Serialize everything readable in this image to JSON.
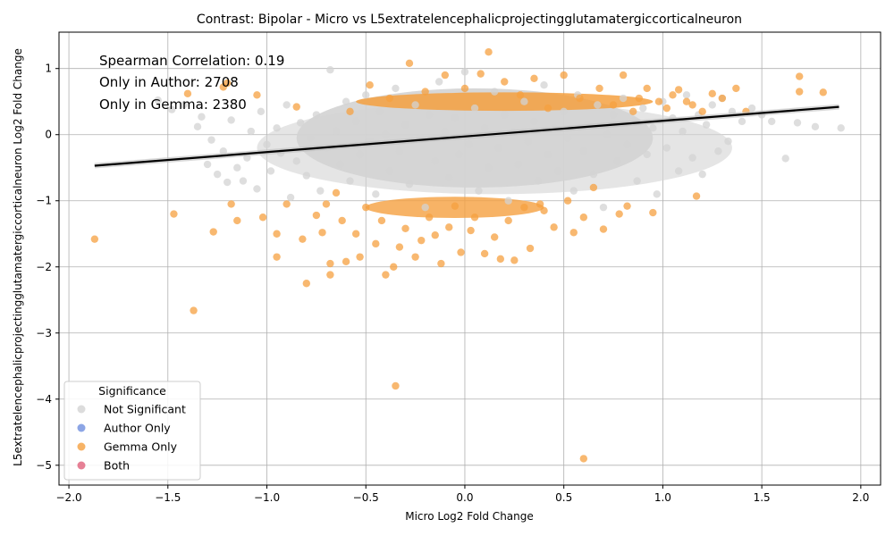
{
  "chart_data": {
    "type": "scatter",
    "title": "Contrast: Bipolar - Micro vs L5extratelencephalicprojectingglutamatergiccorticalneuron",
    "xlabel": "Micro Log2 Fold Change",
    "ylabel": "L5extratelencephalicprojectingglutamatergiccorticalneuron Log2 Fold Change",
    "xlim": [
      -2.05,
      2.1
    ],
    "ylim": [
      -5.3,
      1.55
    ],
    "xticks": [
      -2.0,
      -1.5,
      -1.0,
      -0.5,
      0.0,
      0.5,
      1.0,
      1.5,
      2.0
    ],
    "xtick_labels": [
      "−2.0",
      "−1.5",
      "−1.0",
      "−0.5",
      "0.0",
      "0.5",
      "1.0",
      "1.5",
      "2.0"
    ],
    "yticks": [
      -5,
      -4,
      -3,
      -2,
      -1,
      0,
      1
    ],
    "ytick_labels": [
      "−5",
      "−4",
      "−3",
      "−2",
      "−1",
      "0",
      "1"
    ],
    "grid": true,
    "annotations": [
      "Spearman Correlation: 0.19",
      "Only in Author: 2708",
      "Only in Gemma: 2380"
    ],
    "regression_line": {
      "x": [
        -1.87,
        1.89
      ],
      "y": [
        -0.47,
        0.42
      ],
      "color": "#000000"
    },
    "legend": {
      "title": "Significance",
      "placement": "lower-left",
      "entries": [
        {
          "label": "Not Significant",
          "color": "#d3d3d3"
        },
        {
          "label": "Author Only",
          "color": "#6f8fdf"
        },
        {
          "label": "Gemma Only",
          "color": "#f5a040"
        },
        {
          "label": "Both",
          "color": "#e0607a"
        }
      ]
    },
    "series": [
      {
        "name": "Not Significant",
        "color": "#d3d3d3",
        "points": [
          [
            -1.55,
            0.52
          ],
          [
            -1.48,
            0.38
          ],
          [
            -1.42,
            0.45
          ],
          [
            -1.35,
            0.12
          ],
          [
            -1.33,
            0.27
          ],
          [
            -1.3,
            -0.45
          ],
          [
            -1.28,
            -0.08
          ],
          [
            -1.25,
            -0.6
          ],
          [
            -1.22,
            -0.25
          ],
          [
            -1.2,
            -0.72
          ],
          [
            -1.18,
            0.22
          ],
          [
            -1.15,
            -0.5
          ],
          [
            -1.12,
            -0.7
          ],
          [
            -1.1,
            -0.35
          ],
          [
            -1.08,
            0.05
          ],
          [
            -1.05,
            -0.82
          ],
          [
            -1.03,
            0.35
          ],
          [
            -1.0,
            -0.15
          ],
          [
            -0.98,
            -0.55
          ],
          [
            -0.95,
            0.1
          ],
          [
            -0.93,
            -0.28
          ],
          [
            -0.9,
            0.45
          ],
          [
            -0.88,
            -0.95
          ],
          [
            -0.85,
            -0.4
          ],
          [
            -0.83,
            0.18
          ],
          [
            -0.8,
            -0.62
          ],
          [
            -0.78,
            -0.05
          ],
          [
            -0.75,
            0.3
          ],
          [
            -0.73,
            -0.85
          ],
          [
            -0.7,
            -0.2
          ],
          [
            -0.68,
            0.98
          ],
          [
            -0.65,
            0.05
          ],
          [
            -0.63,
            -0.45
          ],
          [
            -0.6,
            0.5
          ],
          [
            -0.58,
            -0.7
          ],
          [
            -0.55,
            0.2
          ],
          [
            -0.53,
            -0.3
          ],
          [
            -0.5,
            0.6
          ],
          [
            -0.48,
            -0.1
          ],
          [
            -0.45,
            -0.9
          ],
          [
            -0.43,
            0.35
          ],
          [
            -0.4,
            0.0
          ],
          [
            -0.38,
            -0.55
          ],
          [
            -0.35,
            0.7
          ],
          [
            -0.33,
            -0.25
          ],
          [
            -0.3,
            0.15
          ],
          [
            -0.28,
            -0.75
          ],
          [
            -0.25,
            0.45
          ],
          [
            -0.23,
            -0.05
          ],
          [
            -0.2,
            -1.1
          ],
          [
            -0.18,
            0.3
          ],
          [
            -0.15,
            -0.4
          ],
          [
            -0.13,
            0.8
          ],
          [
            -0.1,
            0.05
          ],
          [
            -0.08,
            -0.65
          ],
          [
            -0.05,
            0.25
          ],
          [
            -0.03,
            -0.3
          ],
          [
            0.0,
            0.95
          ],
          [
            0.02,
            -0.15
          ],
          [
            0.05,
            0.4
          ],
          [
            0.07,
            -0.85
          ],
          [
            0.1,
            0.1
          ],
          [
            0.12,
            -0.5
          ],
          [
            0.15,
            0.65
          ],
          [
            0.17,
            -0.2
          ],
          [
            0.2,
            0.3
          ],
          [
            0.22,
            -1.0
          ],
          [
            0.25,
            0.05
          ],
          [
            0.27,
            -0.45
          ],
          [
            0.3,
            0.5
          ],
          [
            0.32,
            -0.1
          ],
          [
            0.35,
            0.2
          ],
          [
            0.37,
            -0.7
          ],
          [
            0.4,
            0.75
          ],
          [
            0.42,
            -0.3
          ],
          [
            0.45,
            0.1
          ],
          [
            0.47,
            -0.55
          ],
          [
            0.5,
            0.35
          ],
          [
            0.52,
            -0.05
          ],
          [
            0.55,
            -0.85
          ],
          [
            0.57,
            0.6
          ],
          [
            0.6,
            -0.25
          ],
          [
            0.62,
            0.15
          ],
          [
            0.65,
            -0.6
          ],
          [
            0.67,
            0.45
          ],
          [
            0.7,
            -1.1
          ],
          [
            0.72,
            0.0
          ],
          [
            0.75,
            0.3
          ],
          [
            0.77,
            -0.4
          ],
          [
            0.8,
            0.55
          ],
          [
            0.82,
            -0.15
          ],
          [
            0.85,
            0.2
          ],
          [
            0.87,
            -0.7
          ],
          [
            0.9,
            0.4
          ],
          [
            0.92,
            -0.3
          ],
          [
            0.95,
            0.1
          ],
          [
            0.97,
            -0.9
          ],
          [
            1.0,
            0.5
          ],
          [
            1.02,
            -0.2
          ],
          [
            1.05,
            0.25
          ],
          [
            1.08,
            -0.55
          ],
          [
            1.1,
            0.05
          ],
          [
            1.12,
            0.6
          ],
          [
            1.15,
            -0.35
          ],
          [
            1.18,
            0.3
          ],
          [
            1.2,
            -0.6
          ],
          [
            1.22,
            0.15
          ],
          [
            1.25,
            0.45
          ],
          [
            1.28,
            -0.25
          ],
          [
            1.3,
            0.55
          ],
          [
            1.33,
            -0.1
          ],
          [
            1.35,
            0.35
          ],
          [
            1.4,
            0.2
          ],
          [
            1.45,
            0.4
          ],
          [
            1.5,
            0.3
          ],
          [
            1.55,
            0.2
          ],
          [
            1.62,
            -0.36
          ],
          [
            1.68,
            0.18
          ],
          [
            1.77,
            0.12
          ],
          [
            1.9,
            0.1
          ]
        ]
      },
      {
        "name": "Gemma Only",
        "color": "#f5a040",
        "points": [
          [
            -1.87,
            -1.58
          ],
          [
            -1.47,
            -1.2
          ],
          [
            -1.4,
            0.62
          ],
          [
            -1.37,
            -2.66
          ],
          [
            -1.27,
            -1.47
          ],
          [
            -1.22,
            0.72
          ],
          [
            -1.2,
            0.78
          ],
          [
            -1.18,
            -1.05
          ],
          [
            -1.15,
            -1.3
          ],
          [
            -1.05,
            0.6
          ],
          [
            -1.02,
            -1.25
          ],
          [
            -0.95,
            -1.5
          ],
          [
            -0.95,
            -1.85
          ],
          [
            -0.9,
            -1.05
          ],
          [
            -0.85,
            0.42
          ],
          [
            -0.82,
            -1.58
          ],
          [
            -0.8,
            -2.25
          ],
          [
            -0.75,
            -1.22
          ],
          [
            -0.72,
            -1.48
          ],
          [
            -0.7,
            -1.05
          ],
          [
            -0.68,
            -1.95
          ],
          [
            -0.68,
            -2.12
          ],
          [
            -0.65,
            -0.88
          ],
          [
            -0.62,
            -1.3
          ],
          [
            -0.6,
            -1.92
          ],
          [
            -0.58,
            0.35
          ],
          [
            -0.55,
            -1.5
          ],
          [
            -0.53,
            -1.85
          ],
          [
            -0.5,
            -1.1
          ],
          [
            -0.48,
            0.75
          ],
          [
            -0.45,
            -1.65
          ],
          [
            -0.42,
            -1.3
          ],
          [
            -0.4,
            -2.12
          ],
          [
            -0.38,
            0.55
          ],
          [
            -0.36,
            -2.0
          ],
          [
            -0.35,
            -3.8
          ],
          [
            -0.33,
            -1.7
          ],
          [
            -0.3,
            -1.42
          ],
          [
            -0.28,
            1.08
          ],
          [
            -0.25,
            -1.85
          ],
          [
            -0.22,
            -1.6
          ],
          [
            -0.2,
            0.65
          ],
          [
            -0.18,
            -1.25
          ],
          [
            -0.15,
            -1.52
          ],
          [
            -0.12,
            -1.95
          ],
          [
            -0.1,
            0.9
          ],
          [
            -0.08,
            -1.4
          ],
          [
            -0.05,
            -1.08
          ],
          [
            -0.02,
            -1.78
          ],
          [
            0.0,
            0.7
          ],
          [
            0.03,
            -1.45
          ],
          [
            0.05,
            -1.25
          ],
          [
            0.08,
            0.92
          ],
          [
            0.1,
            -1.8
          ],
          [
            0.12,
            1.25
          ],
          [
            0.15,
            -1.55
          ],
          [
            0.18,
            -1.88
          ],
          [
            0.2,
            0.8
          ],
          [
            0.22,
            -1.3
          ],
          [
            0.25,
            -1.9
          ],
          [
            0.28,
            0.6
          ],
          [
            0.3,
            -1.1
          ],
          [
            0.33,
            -1.72
          ],
          [
            0.35,
            0.85
          ],
          [
            0.38,
            -1.05
          ],
          [
            0.4,
            -1.15
          ],
          [
            0.42,
            0.4
          ],
          [
            0.45,
            -1.4
          ],
          [
            0.5,
            0.9
          ],
          [
            0.52,
            -1.0
          ],
          [
            0.55,
            -1.48
          ],
          [
            0.58,
            0.55
          ],
          [
            0.6,
            -1.25
          ],
          [
            0.6,
            -4.9
          ],
          [
            0.65,
            -0.8
          ],
          [
            0.68,
            0.7
          ],
          [
            0.7,
            -1.43
          ],
          [
            0.75,
            0.45
          ],
          [
            0.78,
            -1.2
          ],
          [
            0.8,
            0.9
          ],
          [
            0.82,
            -1.08
          ],
          [
            0.85,
            0.35
          ],
          [
            0.88,
            0.55
          ],
          [
            0.92,
            0.7
          ],
          [
            0.95,
            -1.18
          ],
          [
            0.98,
            0.5
          ],
          [
            1.02,
            0.4
          ],
          [
            1.05,
            0.6
          ],
          [
            1.08,
            0.68
          ],
          [
            1.12,
            0.5
          ],
          [
            1.15,
            0.45
          ],
          [
            1.17,
            -0.93
          ],
          [
            1.2,
            0.35
          ],
          [
            1.25,
            0.62
          ],
          [
            1.3,
            0.55
          ],
          [
            1.37,
            0.7
          ],
          [
            1.42,
            0.35
          ],
          [
            1.69,
            0.65
          ],
          [
            1.69,
            0.88
          ],
          [
            1.81,
            0.64
          ]
        ]
      }
    ]
  }
}
